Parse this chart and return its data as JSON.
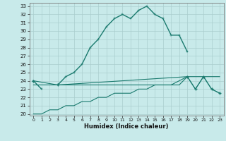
{
  "xlabel": "Humidex (Indice chaleur)",
  "x": [
    0,
    1,
    2,
    3,
    4,
    5,
    6,
    7,
    8,
    9,
    10,
    11,
    12,
    13,
    14,
    15,
    16,
    17,
    18,
    19,
    20,
    21,
    22,
    23
  ],
  "top_line": [
    24,
    23,
    null,
    23.5,
    24.5,
    25.0,
    26.0,
    28.0,
    29.0,
    30.5,
    31.5,
    32.0,
    31.5,
    32.5,
    33.0,
    32.0,
    31.5,
    29.5,
    29.5,
    27.5,
    null,
    null,
    null,
    null
  ],
  "mid_line": [
    24.0,
    null,
    null,
    23.5,
    null,
    null,
    null,
    null,
    null,
    null,
    null,
    null,
    null,
    null,
    null,
    null,
    null,
    null,
    null,
    24.5,
    23.0,
    24.5,
    23.0,
    22.5
  ],
  "mid_line_base": [
    23.5,
    23.5,
    23.5,
    23.5,
    23.5,
    23.5,
    23.5,
    23.5,
    23.5,
    23.5,
    23.5,
    23.5,
    23.5,
    23.5,
    23.5,
    23.5,
    23.5,
    23.5,
    23.5,
    24.5,
    23.0,
    24.5,
    23.0,
    22.5
  ],
  "bot_line": [
    20.0,
    20.0,
    20.5,
    20.5,
    21.0,
    21.0,
    21.5,
    21.5,
    22.0,
    22.0,
    22.5,
    22.5,
    22.5,
    23.0,
    23.0,
    23.5,
    23.5,
    23.5,
    24.0,
    24.5,
    24.5,
    24.5,
    24.5,
    24.5
  ],
  "yticks": [
    20,
    21,
    22,
    23,
    24,
    25,
    26,
    27,
    28,
    29,
    30,
    31,
    32,
    33
  ],
  "xticks": [
    0,
    1,
    2,
    3,
    4,
    5,
    6,
    7,
    8,
    9,
    10,
    11,
    12,
    13,
    14,
    15,
    16,
    17,
    18,
    19,
    20,
    21,
    22,
    23
  ],
  "line_color": "#1a7a6e",
  "bg_color": "#c8eaea",
  "grid_color": "#aacece"
}
